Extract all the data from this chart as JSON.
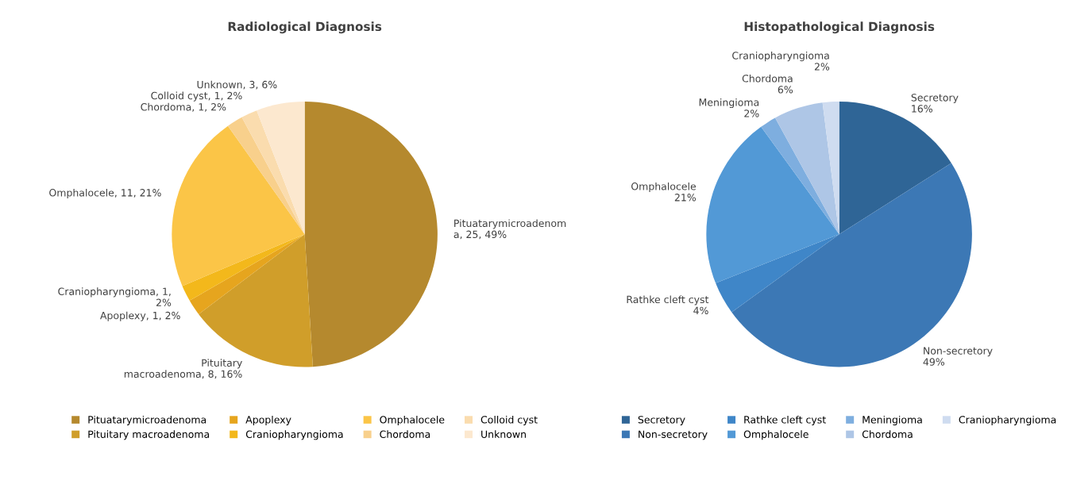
{
  "chart_data": [
    {
      "type": "pie",
      "title": "Radiological Diagnosis",
      "categories": [
        "Pituatarymicroadenoma",
        "Pituitary macroadenoma",
        "Apoplexy",
        "Craniopharyngioma",
        "Omphalocele",
        "Chordoma",
        "Colloid cyst",
        "Unknown"
      ],
      "values": [
        25,
        8,
        1,
        1,
        11,
        1,
        1,
        3
      ],
      "value_labels": [
        "Pituatarymicroadenom\na, 25, 49%",
        "Pituitary\nmacroadenoma, 8, 16%",
        "Apoplexy, 1, 2%",
        "Craniopharyngioma, 1,\n2%",
        "Omphalocele, 11, 21%",
        "Chordoma, 1, 2%",
        "Colloid cyst, 1, 2%",
        "Unknown, 3, 6%"
      ],
      "colors": [
        "#b5892e",
        "#d09e2a",
        "#e6a51e",
        "#f3b81b",
        "#fbc547",
        "#f8d08c",
        "#fadcae",
        "#fce8cf"
      ],
      "legend": "bottom"
    },
    {
      "type": "pie",
      "title": "Histopathological Diagnosis",
      "categories": [
        "Secretory",
        "Non-secretory",
        "Rathke cleft cyst",
        "Omphalocele",
        "Meningioma",
        "Chordoma",
        "Craniopharyngioma"
      ],
      "values": [
        16,
        49,
        4,
        21,
        2,
        6,
        2
      ],
      "value_labels": [
        "Secretory\n16%",
        "Non-secretory\n49%",
        "Rathke cleft cyst\n4%",
        "Omphalocele\n21%",
        "Meningioma\n2%",
        "Chordoma\n6%",
        "Craniopharyngioma\n2%"
      ],
      "colors": [
        "#2f6596",
        "#3c78b5",
        "#3f86c8",
        "#5299d6",
        "#7eaedf",
        "#aec6e6",
        "#cfdcf0"
      ],
      "legend": "bottom"
    }
  ]
}
